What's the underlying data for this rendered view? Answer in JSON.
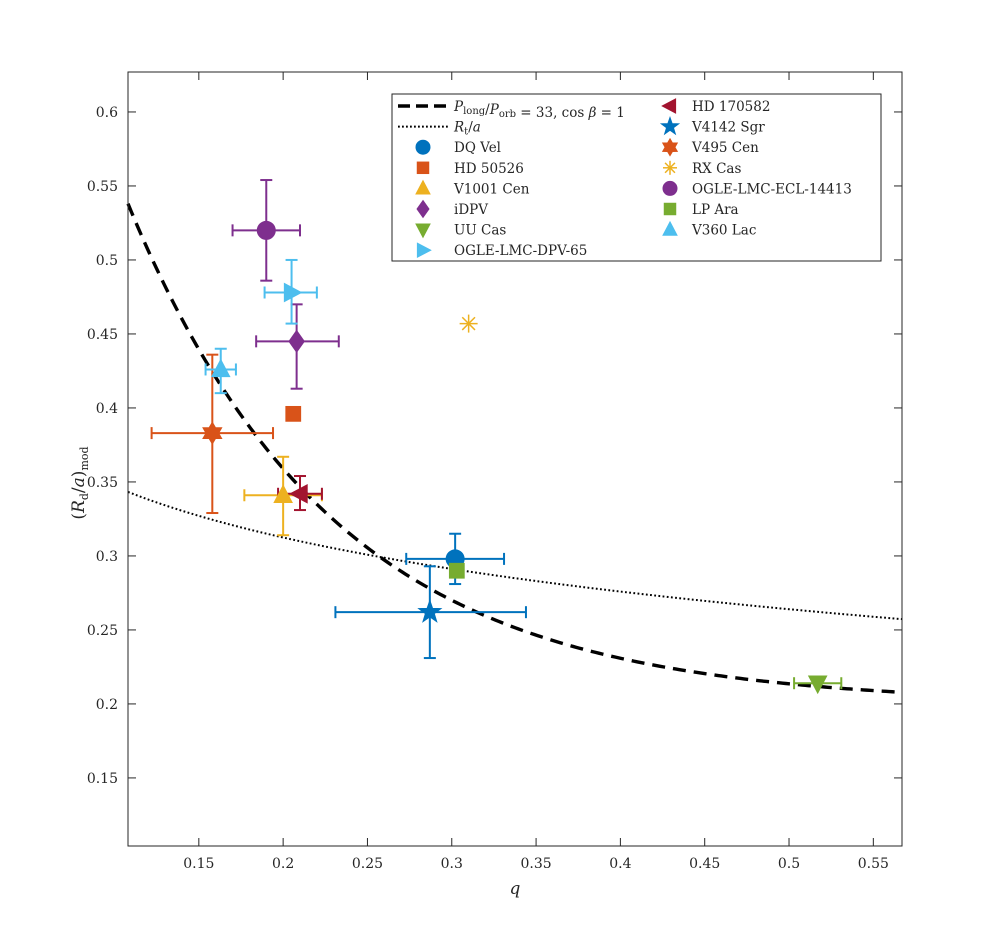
{
  "chart_data": {
    "type": "scatter",
    "xlabel": "q",
    "ylabel": "(R_d/a)_mod",
    "xlim": [
      0.108,
      0.567
    ],
    "ylim": [
      0.104,
      0.627
    ],
    "xticks": [
      0.15,
      0.2,
      0.25,
      0.3,
      0.35,
      0.4,
      0.45,
      0.5,
      0.55
    ],
    "xtick_labels": [
      "0.15",
      "0.2",
      "0.25",
      "0.3",
      "0.35",
      "0.4",
      "0.45",
      "0.5",
      "0.55"
    ],
    "yticks": [
      0.15,
      0.2,
      0.25,
      0.3,
      0.35,
      0.4,
      0.45,
      0.5,
      0.55,
      0.6
    ],
    "ytick_labels": [
      "0.15",
      "0.2",
      "0.25",
      "0.3",
      "0.35",
      "0.4",
      "0.45",
      "0.5",
      "0.55",
      "0.6"
    ],
    "grid": false,
    "legend_position": "top-right",
    "curves": [
      {
        "name": "P_long/P_orb = 33, cos β = 1",
        "style": "dashed",
        "color": "#000000",
        "formula": "fitted-decay",
        "legend": "P_long/P_orb = 33, cos β = 1"
      },
      {
        "name": "R_t/a",
        "style": "dotted",
        "color": "#000000",
        "formula": "tidal-radius",
        "legend": "R_t/a"
      }
    ],
    "series": [
      {
        "name": "DQ Vel",
        "marker": "circle",
        "color": "#0072BD",
        "x": 0.302,
        "y": 0.298,
        "xerr": [
          0.029,
          0.029
        ],
        "yerr": [
          0.017,
          0.017
        ]
      },
      {
        "name": "HD 50526",
        "marker": "square",
        "color": "#D95319",
        "x": 0.206,
        "y": 0.396,
        "xerr": null,
        "yerr": null
      },
      {
        "name": "V1001 Cen",
        "marker": "triangle-up",
        "color": "#EDB120",
        "x": 0.2,
        "y": 0.341,
        "xerr": [
          0.023,
          0.023
        ],
        "yerr": [
          0.027,
          0.026
        ]
      },
      {
        "name": "iDPV",
        "marker": "diamond",
        "color": "#7E2F8E",
        "x": 0.208,
        "y": 0.445,
        "xerr": [
          0.024,
          0.025
        ],
        "yerr": [
          0.032,
          0.025
        ]
      },
      {
        "name": "UU Cas",
        "marker": "triangle-down",
        "color": "#77AC30",
        "x": 0.517,
        "y": 0.214,
        "xerr": [
          0.014,
          0.014
        ],
        "yerr": null
      },
      {
        "name": "OGLE-LMC-DPV-65",
        "marker": "triangle-right",
        "color": "#4DBEEE",
        "x": 0.205,
        "y": 0.478,
        "xerr": [
          0.016,
          0.015
        ],
        "yerr": [
          0.021,
          0.022
        ]
      },
      {
        "name": "HD 170582",
        "marker": "triangle-left",
        "color": "#A2142F",
        "x": 0.21,
        "y": 0.342,
        "xerr": [
          0.013,
          0.013
        ],
        "yerr": [
          0.011,
          0.012
        ]
      },
      {
        "name": "V4142 Sgr",
        "marker": "pentagram",
        "color": "#0072BD",
        "x": 0.287,
        "y": 0.262,
        "xerr": [
          0.056,
          0.057
        ],
        "yerr": [
          0.031,
          0.031
        ]
      },
      {
        "name": "V495 Cen",
        "marker": "hexagram",
        "color": "#D95319",
        "x": 0.158,
        "y": 0.383,
        "xerr": [
          0.036,
          0.036
        ],
        "yerr": [
          0.054,
          0.053
        ]
      },
      {
        "name": "RX Cas",
        "marker": "asterisk",
        "color": "#EDB120",
        "x": 0.31,
        "y": 0.457,
        "xerr": null,
        "yerr": null
      },
      {
        "name": "OGLE-LMC-ECL-14413",
        "marker": "circle",
        "color": "#7E2F8E",
        "x": 0.19,
        "y": 0.52,
        "xerr": [
          0.02,
          0.02
        ],
        "yerr": [
          0.034,
          0.034
        ]
      },
      {
        "name": "LP Ara",
        "marker": "square",
        "color": "#77AC30",
        "x": 0.303,
        "y": 0.29,
        "xerr": null,
        "yerr": null
      },
      {
        "name": "V360 Lac",
        "marker": "triangle-up",
        "color": "#4DBEEE",
        "x": 0.163,
        "y": 0.426,
        "xerr": [
          0.009,
          0.009
        ],
        "yerr": [
          0.016,
          0.014
        ]
      }
    ]
  }
}
